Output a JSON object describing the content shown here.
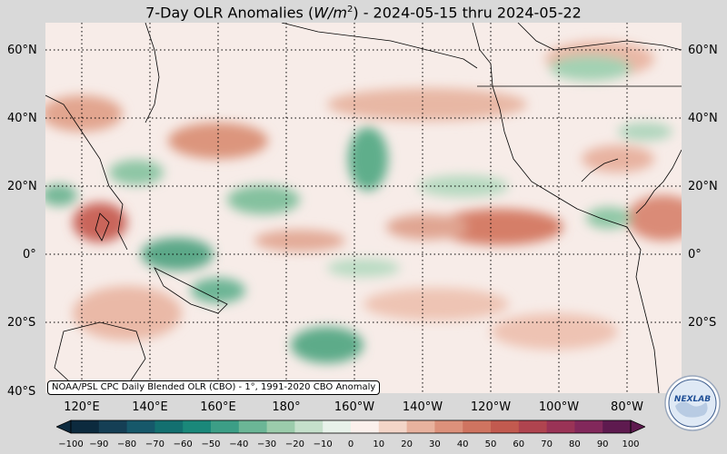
{
  "title": {
    "prefix": "7-Day OLR Anomalies (",
    "unit_base": "W/m",
    "unit_exp": "2",
    "suffix": ") - 2024-05-15 thru 2024-05-22"
  },
  "lat_labels": [
    "60°N",
    "40°N",
    "20°N",
    "0°",
    "20°S",
    "40°S"
  ],
  "lon_labels": [
    "120°E",
    "140°E",
    "160°E",
    "180°",
    "160°W",
    "140°W",
    "120°W",
    "100°W",
    "80°W"
  ],
  "credit": "NOAA/PSL CPC Daily Blended OLR (CBO) - 1°, 1991-2020 CBO Anomaly",
  "colorbar": {
    "ticks": [
      "−100",
      "−90",
      "−80",
      "−70",
      "−60",
      "−50",
      "−40",
      "−30",
      "−20",
      "−10",
      "0",
      "10",
      "20",
      "30",
      "40",
      "50",
      "60",
      "70",
      "80",
      "90",
      "100"
    ],
    "colors": [
      "#0c2a3e",
      "#153f55",
      "#16586a",
      "#137070",
      "#1a887a",
      "#3c9e86",
      "#6bb696",
      "#9bccab",
      "#c5e0cb",
      "#e8f2ea",
      "#fbf0ec",
      "#f3d5c8",
      "#e8b29e",
      "#dc917b",
      "#cf7460",
      "#c25a4f",
      "#b0444f",
      "#9a3356",
      "#82285b",
      "#5e1a4f"
    ]
  },
  "logo": {
    "text": "NEXLAB"
  },
  "colors": {
    "background": "#d9d9d9",
    "ocean_neutral": "#f7ece8",
    "grid": "#000000"
  }
}
